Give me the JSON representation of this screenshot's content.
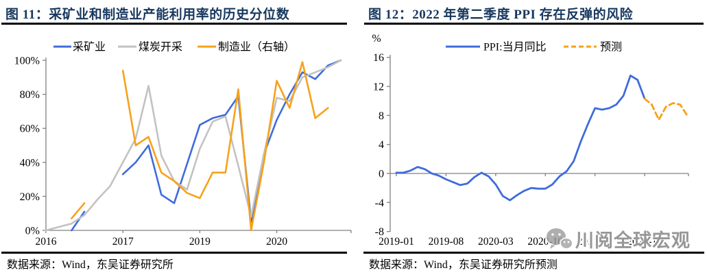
{
  "colors": {
    "title_navy": "#17375e",
    "blue": "#3e6bdd",
    "gray": "#c2c2c2",
    "orange": "#f7a11a",
    "axis": "#808080",
    "rule_black": "#000000",
    "watermark_gray": "#808080"
  },
  "watermark": {
    "text": "川阅全球宏观",
    "icon": "wechat-icon"
  },
  "chart_data": [
    {
      "type": "line",
      "title": "图 11：采矿业和制造业产能利用率的历史分位数",
      "source": "数据来源：Wind，东吴证券研究所",
      "legend_position": "top",
      "grid": false,
      "ylim": [
        0,
        100
      ],
      "y_ticks": [
        {
          "value": 100,
          "label": "100%"
        },
        {
          "value": 80,
          "label": "80%"
        },
        {
          "value": 60,
          "label": "60%"
        },
        {
          "value": 40,
          "label": "40%"
        },
        {
          "value": 20,
          "label": "20%"
        },
        {
          "value": 0,
          "label": "0%"
        }
      ],
      "categories": [
        "2016Q1",
        "2016Q2",
        "2016Q3",
        "2016Q4",
        "2017Q1",
        "2017Q2",
        "2017Q3",
        "2017Q4",
        "2018Q1",
        "2018Q2",
        "2018Q3",
        "2018Q4",
        "2019Q1",
        "2019Q2",
        "2019Q3",
        "2019Q4",
        "2020Q1",
        "2020Q2",
        "2020Q3",
        "2020Q4",
        "2021Q1",
        "2021Q2",
        "2021Q3",
        "2021Q4"
      ],
      "x_tick_labels": [
        {
          "label": "2016",
          "index": 0
        },
        {
          "label": "2017",
          "index": 6
        },
        {
          "label": "2019",
          "index": 12
        },
        {
          "label": "2020",
          "index": 18
        }
      ],
      "series": [
        {
          "name": "采矿业",
          "color": "#3e6bdd",
          "style": "solid",
          "values": [
            null,
            null,
            0,
            11,
            null,
            null,
            33,
            40,
            50,
            21,
            16,
            39,
            62,
            66,
            68,
            79,
            5,
            45,
            65,
            80,
            93,
            89,
            97,
            100
          ]
        },
        {
          "name": "煤炭开采",
          "color": "#c2c2c2",
          "style": "solid",
          "values": [
            0,
            2,
            4,
            9,
            18,
            26,
            40,
            54,
            85,
            44,
            29,
            24,
            48,
            64,
            67,
            38,
            8,
            45,
            78,
            76,
            90,
            93,
            96,
            100
          ]
        },
        {
          "name": "制造业（右轴）",
          "color": "#f7a11a",
          "style": "solid",
          "values": [
            null,
            null,
            7,
            16,
            null,
            null,
            94,
            50,
            55,
            34,
            29,
            22,
            19,
            34,
            34,
            83,
            0,
            40,
            88,
            72,
            99,
            66,
            72,
            null
          ]
        }
      ]
    },
    {
      "type": "line",
      "title": "图 12：2022 年第二季度 PPI 存在反弹的风险",
      "source": "数据来源：Wind，东吴证券研究所预测",
      "y_unit": "%",
      "legend_position": "top",
      "grid": false,
      "ylim": [
        -8,
        16
      ],
      "y_ticks": [
        {
          "value": 16,
          "label": "16"
        },
        {
          "value": 12,
          "label": "12"
        },
        {
          "value": 8,
          "label": "8"
        },
        {
          "value": 4,
          "label": "4"
        },
        {
          "value": 0,
          "label": "0"
        },
        {
          "value": -4,
          "label": "-4"
        },
        {
          "value": -8,
          "label": "-8"
        }
      ],
      "categories": [
        "2019-01",
        "2019-02",
        "2019-03",
        "2019-04",
        "2019-05",
        "2019-06",
        "2019-07",
        "2019-08",
        "2019-09",
        "2019-10",
        "2019-11",
        "2019-12",
        "2020-01",
        "2020-02",
        "2020-03",
        "2020-04",
        "2020-05",
        "2020-06",
        "2020-07",
        "2020-08",
        "2020-09",
        "2020-10",
        "2020-11",
        "2020-12",
        "2021-01",
        "2021-02",
        "2021-03",
        "2021-04",
        "2021-05",
        "2021-06",
        "2021-07",
        "2021-08",
        "2021-09",
        "2021-10",
        "2021-11",
        "2021-12",
        "2022-01",
        "2022-02",
        "2022-03",
        "2022-04",
        "2022-05",
        "2022-06"
      ],
      "x_tick_labels": [
        {
          "label": "2019-01",
          "index": 0
        },
        {
          "label": "2019-08",
          "index": 7
        },
        {
          "label": "2020-03",
          "index": 14
        },
        {
          "label": "2020-10",
          "index": 21
        },
        {
          "label": "2021-05",
          "index": 28
        },
        {
          "label": "2021-12",
          "index": 35
        }
      ],
      "series": [
        {
          "name": "PPI:当月同比",
          "color": "#3e6bdd",
          "style": "solid",
          "values": [
            0.1,
            0.1,
            0.4,
            0.9,
            0.6,
            0.0,
            -0.3,
            -0.8,
            -1.2,
            -1.6,
            -1.4,
            -0.5,
            0.1,
            -0.4,
            -1.5,
            -3.1,
            -3.7,
            -3.0,
            -2.4,
            -2.0,
            -2.1,
            -2.1,
            -1.5,
            -0.4,
            0.3,
            1.7,
            4.4,
            6.8,
            9.0,
            8.8,
            9.0,
            9.5,
            10.7,
            13.5,
            12.9,
            10.3,
            null,
            null,
            null,
            null,
            null,
            null
          ]
        },
        {
          "name": "预测",
          "color": "#f7a11a",
          "style": "dashed",
          "values": [
            null,
            null,
            null,
            null,
            null,
            null,
            null,
            null,
            null,
            null,
            null,
            null,
            null,
            null,
            null,
            null,
            null,
            null,
            null,
            null,
            null,
            null,
            null,
            null,
            null,
            null,
            null,
            null,
            null,
            null,
            null,
            null,
            null,
            null,
            null,
            10.3,
            9.5,
            7.4,
            9.2,
            9.7,
            9.5,
            8.0
          ]
        }
      ]
    }
  ]
}
